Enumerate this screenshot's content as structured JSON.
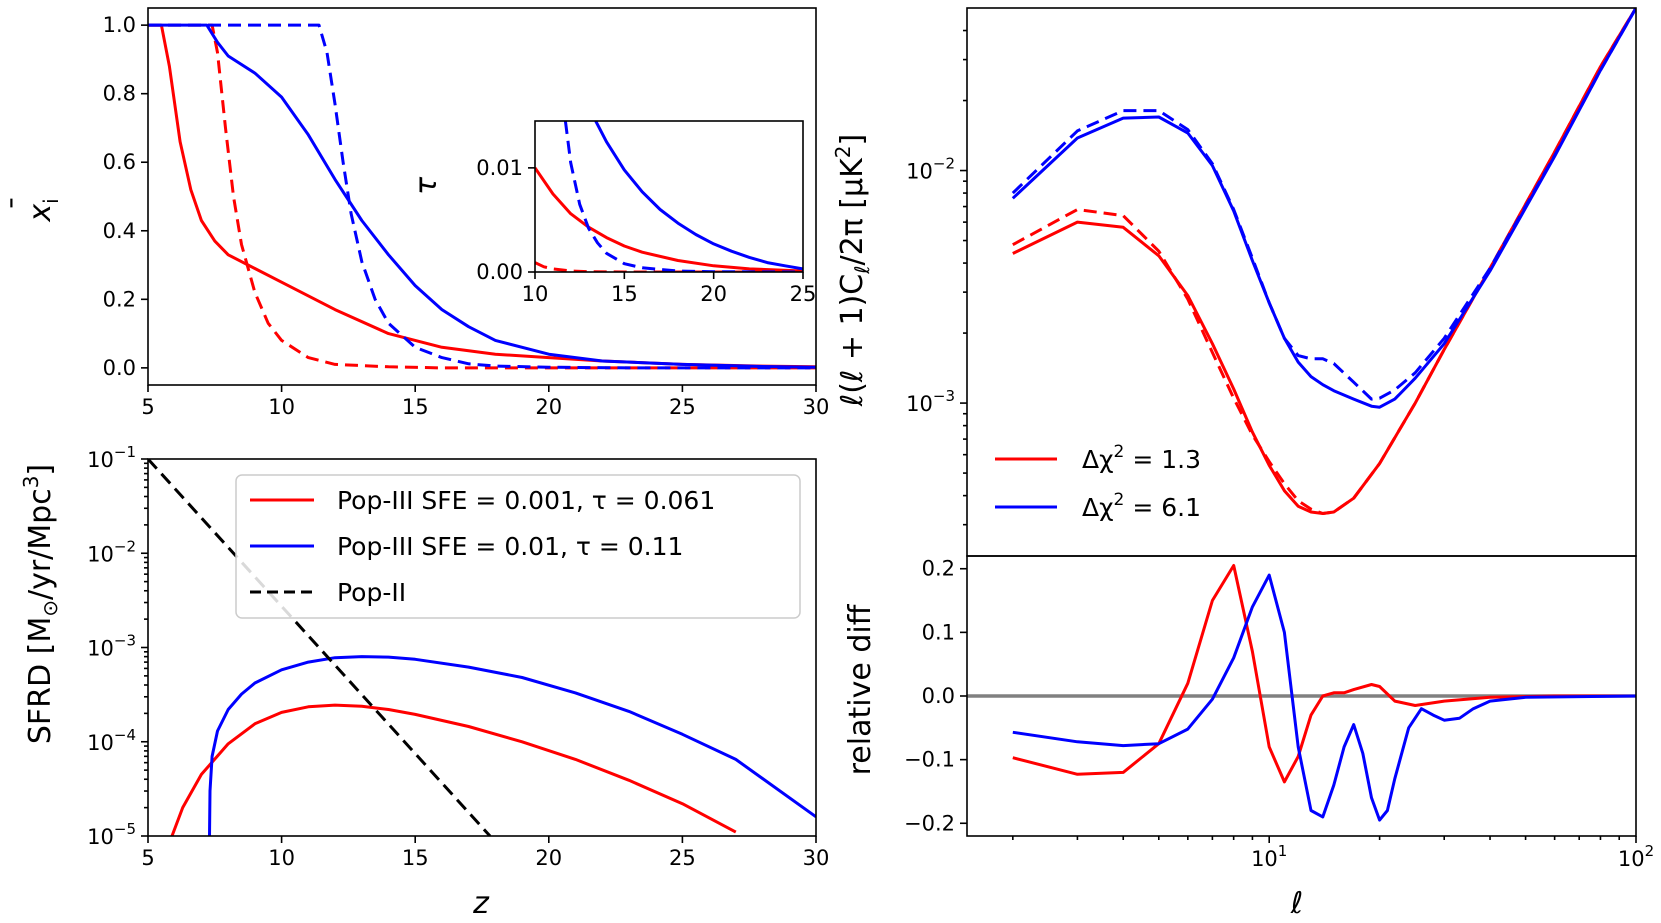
{
  "colors": {
    "red": "#ff0000",
    "blue": "#0000ff",
    "black": "#000000",
    "gray": "#808080"
  },
  "chart_data": [
    {
      "id": "xi",
      "type": "line",
      "xlabel": "",
      "ylabel_base": "x",
      "ylabel_sub": "i",
      "xlim": [
        5,
        30
      ],
      "ylim": [
        -0.05,
        1.05
      ],
      "xticks": [
        "5",
        "10",
        "15",
        "20",
        "25",
        "30"
      ],
      "yticks": [
        "0.0",
        "0.2",
        "0.4",
        "0.6",
        "0.8",
        "1.0"
      ],
      "series": [
        {
          "name": "Pop-III SFE=0.001 solid",
          "color": "red",
          "dash": false,
          "x": [
            5,
            5.5,
            5.8,
            6.2,
            6.6,
            7.0,
            7.5,
            8.0,
            9.0,
            10.0,
            12.0,
            14.0,
            16.0,
            18.0,
            20.0,
            22.0,
            25.0,
            28.0,
            30.0
          ],
          "y": [
            1.0,
            1.0,
            0.88,
            0.66,
            0.52,
            0.43,
            0.37,
            0.33,
            0.29,
            0.25,
            0.17,
            0.1,
            0.06,
            0.04,
            0.03,
            0.02,
            0.01,
            0.005,
            0.003
          ]
        },
        {
          "name": "Pop-III SFE=0.001 dashed",
          "color": "red",
          "dash": true,
          "x": [
            5,
            7.4,
            7.6,
            7.9,
            8.2,
            8.5,
            9.0,
            9.5,
            10.0,
            11.0,
            12.0,
            14.0,
            16.0,
            20.0,
            30.0
          ],
          "y": [
            1.0,
            1.0,
            0.92,
            0.7,
            0.5,
            0.36,
            0.22,
            0.13,
            0.08,
            0.03,
            0.01,
            0.003,
            0.0,
            0.0,
            0.0
          ]
        },
        {
          "name": "Pop-III SFE=0.01 solid",
          "color": "blue",
          "dash": false,
          "x": [
            5,
            7.2,
            7.6,
            8.0,
            9.0,
            10.0,
            11.0,
            12.0,
            13.0,
            14.0,
            15.0,
            16.0,
            17.0,
            18.0,
            20.0,
            22.0,
            25.0,
            28.0,
            30.0
          ],
          "y": [
            1.0,
            1.0,
            0.95,
            0.91,
            0.86,
            0.79,
            0.68,
            0.55,
            0.43,
            0.33,
            0.24,
            0.17,
            0.12,
            0.08,
            0.04,
            0.02,
            0.01,
            0.004,
            0.002
          ]
        },
        {
          "name": "Pop-III SFE=0.01 dashed",
          "color": "blue",
          "dash": true,
          "x": [
            5,
            11.4,
            11.7,
            12.0,
            12.3,
            12.6,
            13.0,
            13.5,
            14.0,
            15.0,
            16.0,
            17.0,
            18.0,
            20.0,
            23.0,
            30.0
          ],
          "y": [
            1.0,
            1.0,
            0.92,
            0.77,
            0.6,
            0.45,
            0.31,
            0.2,
            0.13,
            0.06,
            0.03,
            0.012,
            0.005,
            0.002,
            0.0,
            0.0
          ]
        }
      ]
    },
    {
      "id": "tau",
      "type": "line",
      "xlabel": "",
      "ylabel": "τ",
      "xlim": [
        10,
        25
      ],
      "ylim": [
        0,
        0.0145
      ],
      "xticks": [
        "10",
        "15",
        "20",
        "25"
      ],
      "yticks": [
        "0.00",
        "0.01"
      ],
      "series": [
        {
          "name": "red solid",
          "color": "red",
          "dash": false,
          "x": [
            10,
            11,
            12,
            13,
            14,
            15,
            16,
            18,
            20,
            22,
            25
          ],
          "y": [
            0.01,
            0.0075,
            0.0056,
            0.0043,
            0.0033,
            0.0025,
            0.0019,
            0.0011,
            0.0006,
            0.0003,
            0.0001
          ]
        },
        {
          "name": "red dashed",
          "color": "red",
          "dash": true,
          "x": [
            10,
            10.5,
            11,
            12,
            13,
            15,
            25
          ],
          "y": [
            0.0009,
            0.0005,
            0.0003,
            0.0001,
            3e-05,
            0.0,
            0.0
          ]
        },
        {
          "name": "blue solid",
          "color": "blue",
          "dash": false,
          "x": [
            13.4,
            14,
            15,
            16,
            17,
            18,
            19,
            20,
            21,
            22,
            23,
            24,
            25
          ],
          "y": [
            0.0145,
            0.0125,
            0.0098,
            0.0077,
            0.006,
            0.0047,
            0.0036,
            0.0027,
            0.002,
            0.0014,
            0.0009,
            0.0006,
            0.0003
          ]
        },
        {
          "name": "blue dashed",
          "color": "blue",
          "dash": true,
          "x": [
            11.7,
            12,
            12.5,
            13,
            13.5,
            14,
            15,
            16,
            18,
            20,
            25
          ],
          "y": [
            0.0145,
            0.0105,
            0.0065,
            0.0042,
            0.0028,
            0.0018,
            0.0008,
            0.0004,
            0.0001,
            3e-05,
            0.0
          ]
        }
      ]
    },
    {
      "id": "sfrd",
      "type": "line",
      "yscale": "log",
      "xlabel": "z",
      "ylabel": "SFRD [M",
      "ylabel_sub": "⊙",
      "ylabel_rest": "/yr/Mpc",
      "ylabel_sup": "3",
      "ylabel_close": "]",
      "xlim": [
        5,
        30
      ],
      "ylim": [
        1e-05,
        0.1
      ],
      "xticks": [
        "5",
        "10",
        "15",
        "20",
        "25",
        "30"
      ],
      "yticks": [
        {
          "base": "10",
          "exp": "−5"
        },
        {
          "base": "10",
          "exp": "−4"
        },
        {
          "base": "10",
          "exp": "−3"
        },
        {
          "base": "10",
          "exp": "−2"
        },
        {
          "base": "10",
          "exp": "−1"
        }
      ],
      "legend": {
        "position": "top-right",
        "entries": [
          {
            "label": "Pop-III SFE = 0.001, τ = 0.061",
            "color": "red",
            "dash": false
          },
          {
            "label": "Pop-III SFE = 0.01, τ = 0.11",
            "color": "blue",
            "dash": false
          },
          {
            "label": "Pop-II",
            "color": "black",
            "dash": true
          }
        ]
      },
      "series": [
        {
          "name": "Pop-III SFE = 0.001",
          "color": "red",
          "dash": false,
          "x": [
            5.9,
            6.3,
            7.0,
            8.0,
            9.0,
            10.0,
            11.0,
            12.0,
            13.0,
            14.0,
            15.0,
            17.0,
            19.0,
            21.0,
            23.0,
            25.0,
            27.0
          ],
          "y": [
            1e-05,
            2e-05,
            4.5e-05,
            9.5e-05,
            0.000155,
            0.000205,
            0.000235,
            0.000245,
            0.000238,
            0.00022,
            0.000195,
            0.000145,
            0.0001,
            6.5e-05,
            3.9e-05,
            2.2e-05,
            1.1e-05
          ]
        },
        {
          "name": "Pop-III SFE = 0.01",
          "color": "blue",
          "dash": false,
          "x": [
            7.3,
            7.32,
            7.4,
            7.6,
            8.0,
            8.5,
            9.0,
            10.0,
            11.0,
            12.0,
            13.0,
            14.0,
            15.0,
            17.0,
            19.0,
            21.0,
            23.0,
            25.0,
            27.0,
            30.0
          ],
          "y": [
            1e-05,
            3e-05,
            7e-05,
            0.00013,
            0.00022,
            0.00032,
            0.00042,
            0.00058,
            0.0007,
            0.00078,
            0.0008,
            0.00079,
            0.00075,
            0.00062,
            0.00048,
            0.00033,
            0.00021,
            0.00012,
            6.5e-05,
            1.6e-05
          ]
        },
        {
          "name": "Pop-II",
          "color": "black",
          "dash": true,
          "x": [
            5,
            17.8
          ],
          "y": [
            0.1,
            1e-05
          ]
        }
      ]
    },
    {
      "id": "cl",
      "type": "line",
      "yscale": "log",
      "xscale": "log",
      "xlabel": "",
      "ylabel": "ℓ(ℓ + 1)C",
      "ylabel_sub": "ℓ",
      "ylabel_rest": "/2π [μK",
      "ylabel_sup": "2",
      "ylabel_close": "]",
      "xlim": [
        1.5,
        100
      ],
      "ylim": [
        0.00022,
        0.05
      ],
      "yticks": [
        {
          "base": "10",
          "exp": "−3",
          "value": 0.001
        },
        {
          "base": "10",
          "exp": "−2",
          "value": 0.01
        }
      ],
      "legend": {
        "position": "bottom-left",
        "entries": [
          {
            "label": "Δχ",
            "sup": "2",
            "rest": " = 1.3",
            "color": "red"
          },
          {
            "label": "Δχ",
            "sup": "2",
            "rest": " = 6.1",
            "color": "blue"
          }
        ]
      },
      "series": [
        {
          "name": "red solid",
          "color": "red",
          "dash": false,
          "x": [
            2,
            3,
            4,
            5,
            6,
            7,
            8,
            9,
            10,
            11,
            12,
            13,
            14,
            15,
            17,
            20,
            25,
            30,
            40,
            60,
            80,
            100
          ],
          "y": [
            0.0044,
            0.006,
            0.0057,
            0.0043,
            0.0029,
            0.0018,
            0.00115,
            0.00075,
            0.00054,
            0.00042,
            0.00036,
            0.00034,
            0.000335,
            0.00034,
            0.00039,
            0.00055,
            0.001,
            0.0017,
            0.0038,
            0.012,
            0.028,
            0.05
          ]
        },
        {
          "name": "red dashed",
          "color": "red",
          "dash": true,
          "x": [
            2,
            3,
            4,
            5,
            6,
            7,
            8,
            9,
            10,
            11,
            12,
            13,
            14,
            15,
            17,
            20,
            25,
            30,
            40,
            60,
            80,
            100
          ],
          "y": [
            0.0048,
            0.0068,
            0.0064,
            0.0045,
            0.0028,
            0.00165,
            0.00105,
            0.00073,
            0.00056,
            0.00045,
            0.00038,
            0.00035,
            0.000335,
            0.00034,
            0.00039,
            0.00055,
            0.001,
            0.0017,
            0.0038,
            0.012,
            0.028,
            0.05
          ]
        },
        {
          "name": "blue solid",
          "color": "blue",
          "dash": false,
          "x": [
            2,
            3,
            4,
            5,
            6,
            7,
            8,
            9,
            10,
            11,
            12,
            13,
            14,
            15,
            17,
            19,
            20,
            22,
            25,
            30,
            40,
            60,
            80,
            100
          ],
          "y": [
            0.0076,
            0.0138,
            0.0168,
            0.017,
            0.0145,
            0.0105,
            0.0067,
            0.0041,
            0.0027,
            0.0019,
            0.0015,
            0.0013,
            0.0012,
            0.00113,
            0.00104,
            0.00097,
            0.00096,
            0.00104,
            0.00128,
            0.0018,
            0.0037,
            0.0115,
            0.027,
            0.05
          ]
        },
        {
          "name": "blue dashed",
          "color": "blue",
          "dash": true,
          "x": [
            2,
            3,
            4,
            5,
            6,
            7,
            8,
            9,
            10,
            11,
            12,
            13,
            14,
            15,
            17,
            19,
            20,
            22,
            25,
            30,
            40,
            60,
            80,
            100
          ],
          "y": [
            0.008,
            0.0148,
            0.0181,
            0.0181,
            0.015,
            0.0107,
            0.0068,
            0.0042,
            0.0027,
            0.0019,
            0.0016,
            0.00155,
            0.00155,
            0.00148,
            0.00123,
            0.00104,
            0.00105,
            0.00114,
            0.00135,
            0.0019,
            0.0038,
            0.0116,
            0.027,
            0.05
          ]
        }
      ]
    },
    {
      "id": "diff",
      "type": "line",
      "xscale": "log",
      "xlabel": "ℓ",
      "ylabel": "relative diff",
      "xlim": [
        1.5,
        100
      ],
      "ylim": [
        -0.22,
        0.22
      ],
      "xticks": [
        {
          "base": "10",
          "exp": "1",
          "value": 10
        },
        {
          "base": "10",
          "exp": "2",
          "value": 100
        }
      ],
      "yticks": [
        "−0.2",
        "−0.1",
        "0.0",
        "0.1",
        "0.2"
      ],
      "series": [
        {
          "name": "zero line",
          "color": "gray",
          "dash": false,
          "x": [
            1.5,
            100
          ],
          "y": [
            0,
            0
          ]
        },
        {
          "name": "red",
          "color": "red",
          "dash": false,
          "x": [
            2,
            3,
            4,
            5,
            6,
            7,
            8,
            9,
            10,
            11,
            12,
            13,
            14,
            15,
            16,
            17,
            19,
            20,
            22,
            25,
            30,
            40,
            60,
            100
          ],
          "y": [
            -0.097,
            -0.123,
            -0.12,
            -0.075,
            0.02,
            0.15,
            0.205,
            0.07,
            -0.08,
            -0.135,
            -0.095,
            -0.03,
            0.0,
            0.005,
            0.005,
            0.01,
            0.018,
            0.015,
            -0.008,
            -0.015,
            -0.008,
            -0.002,
            0.0,
            0.0
          ]
        },
        {
          "name": "blue",
          "color": "blue",
          "dash": false,
          "x": [
            2,
            3,
            4,
            5,
            6,
            7,
            8,
            9,
            10,
            11,
            12,
            13,
            14,
            15,
            16,
            17,
            18,
            19,
            20,
            21,
            22,
            24,
            26,
            28,
            30,
            33,
            36,
            40,
            50,
            100
          ],
          "y": [
            -0.057,
            -0.072,
            -0.078,
            -0.075,
            -0.052,
            -0.005,
            0.06,
            0.14,
            0.19,
            0.1,
            -0.08,
            -0.18,
            -0.19,
            -0.14,
            -0.08,
            -0.045,
            -0.09,
            -0.16,
            -0.195,
            -0.18,
            -0.13,
            -0.05,
            -0.02,
            -0.03,
            -0.038,
            -0.035,
            -0.02,
            -0.008,
            -0.002,
            0.0
          ]
        }
      ]
    }
  ]
}
